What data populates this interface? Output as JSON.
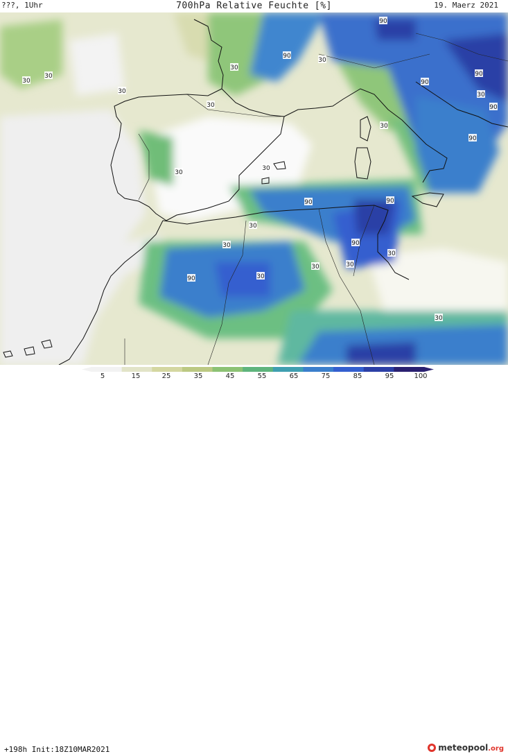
{
  "header": {
    "time_label": "???, 1Uhr",
    "title": "700hPa Relative Feuchte [%]",
    "date": "19. Maerz 2021"
  },
  "map_labels": [
    "90",
    "90",
    "90",
    "90",
    "90",
    "90",
    "90",
    "90",
    "90",
    "90",
    "30",
    "30",
    "30",
    "30",
    "30",
    "30",
    "30",
    "30",
    "30",
    "30",
    "30",
    "30",
    "30",
    "30",
    "30",
    "30",
    "30"
  ],
  "legend": {
    "ticks": [
      "5",
      "15",
      "25",
      "35",
      "45",
      "55",
      "65",
      "75",
      "85",
      "95",
      "100"
    ],
    "colors": [
      "#f2f2f2",
      "#e2e4c8",
      "#d4d7a1",
      "#bcc983",
      "#8cc274",
      "#5fb47d",
      "#3f9fb0",
      "#3b7fcc",
      "#345fcf",
      "#2c3fa6",
      "#2a2070"
    ]
  },
  "footer": {
    "run_info": "+198h  Init:18Z10MAR2021",
    "brand": "meteopool",
    "brand_domain": ".org"
  }
}
